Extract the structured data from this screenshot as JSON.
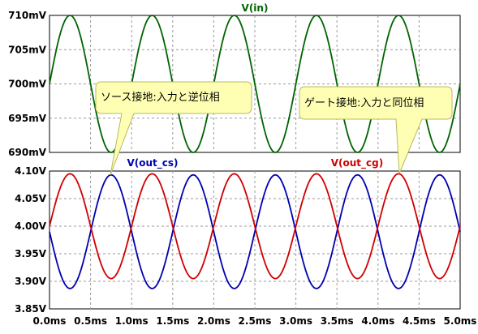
{
  "chart_data": [
    {
      "type": "line",
      "title": "V(in)",
      "ylim": [
        690,
        710
      ],
      "yticks": [
        690,
        695,
        700,
        705,
        710
      ],
      "ytick_labels": [
        "690mV",
        "695mV",
        "700mV",
        "705mV",
        "710mV"
      ],
      "xlim": [
        0,
        5
      ],
      "xtick_labels": [
        "0.0ms",
        "0.5ms",
        "1.0ms",
        "1.5ms",
        "2.0ms",
        "2.5ms",
        "3.0ms",
        "3.5ms",
        "4.0ms",
        "4.5ms",
        "5.0ms"
      ],
      "grid": true,
      "series": [
        {
          "name": "V(in)",
          "color": "#006400",
          "x_unit": "ms",
          "y_unit": "mV",
          "function": "sine",
          "offset": 700,
          "amplitude": 10,
          "frequency_khz": 1,
          "phase": "in-phase"
        }
      ]
    },
    {
      "type": "line",
      "title": "",
      "ylim": [
        3.85,
        4.1
      ],
      "yticks": [
        3.85,
        3.9,
        3.95,
        4.0,
        4.05,
        4.1
      ],
      "ytick_labels": [
        "3.85V",
        "3.90V",
        "3.95V",
        "4.00V",
        "4.05V",
        "4.10V"
      ],
      "xlim": [
        0,
        5
      ],
      "xtick_labels": [
        "0.0ms",
        "0.5ms",
        "1.0ms",
        "1.5ms",
        "2.0ms",
        "2.5ms",
        "3.0ms",
        "3.5ms",
        "4.0ms",
        "4.5ms",
        "5.0ms"
      ],
      "grid": true,
      "series": [
        {
          "name": "V(out_cs)",
          "color": "#0000B0",
          "x_unit": "ms",
          "y_unit": "V",
          "function": "sine",
          "offset": 3.99,
          "amplitude": 0.103,
          "frequency_khz": 1,
          "phase": "inverted"
        },
        {
          "name": "V(out_cg)",
          "color": "#D00000",
          "x_unit": "ms",
          "y_unit": "V",
          "function": "sine",
          "offset": 4.0,
          "amplitude": 0.095,
          "frequency_khz": 1,
          "phase": "in-phase"
        }
      ]
    }
  ],
  "annotations": {
    "cs_text": "ソース接地:入力と逆位相",
    "cg_text": "ゲート接地:入力と同位相"
  }
}
